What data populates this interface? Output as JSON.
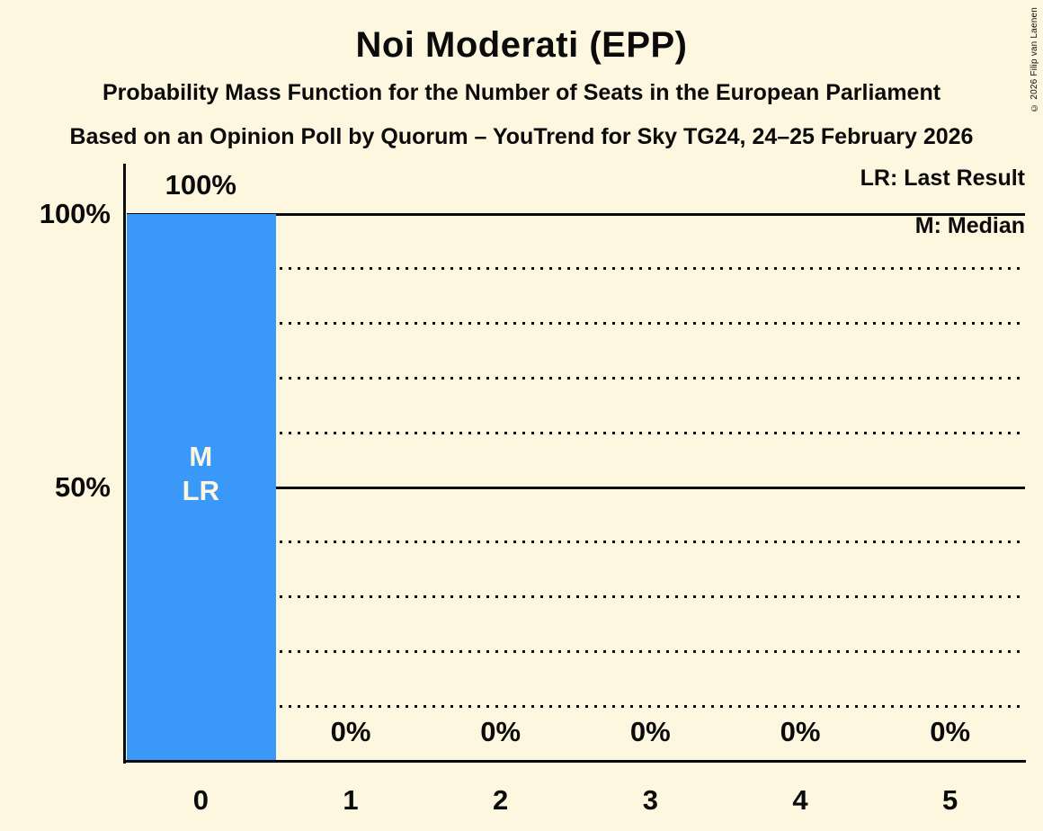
{
  "header": {
    "title": "Noi Moderati (EPP)",
    "subtitle": "Probability Mass Function for the Number of Seats in the European Parliament",
    "poll_info": "Based on an Opinion Poll by Quorum – YouTrend for Sky TG24, 24–25 February 2026"
  },
  "legend": {
    "last_result": "LR: Last Result",
    "median": "M: Median"
  },
  "copyright": "© 2026 Filip van Laenen",
  "colors": {
    "background": "#FCF7DE",
    "bar": "#3A99F8",
    "text": "#0B0B0B",
    "bar_annotation_text": "#FCF7DE"
  },
  "chart_data": {
    "type": "bar",
    "title": "Noi Moderati (EPP)",
    "xlabel": "",
    "ylabel": "",
    "categories": [
      "0",
      "1",
      "2",
      "3",
      "4",
      "5"
    ],
    "values": [
      100,
      0,
      0,
      0,
      0,
      0
    ],
    "value_labels": [
      "100%",
      "0%",
      "0%",
      "0%",
      "0%",
      "0%"
    ],
    "bar_annotations": [
      [
        "M",
        "LR"
      ],
      [],
      [],
      [],
      [],
      []
    ],
    "annotation_meanings": {
      "M": "Median",
      "LR": "Last Result"
    },
    "median_seats": 0,
    "last_result_seats": 0,
    "ylim": [
      0,
      100
    ],
    "ytick_labels": [
      {
        "label": "100%",
        "value": 100
      },
      {
        "label": "50%",
        "value": 50
      }
    ],
    "gridlines": {
      "solid": [
        50,
        100
      ],
      "dotted": [
        10,
        20,
        30,
        40,
        60,
        70,
        80,
        90
      ]
    },
    "grid": true,
    "legend_position": "top-right"
  }
}
